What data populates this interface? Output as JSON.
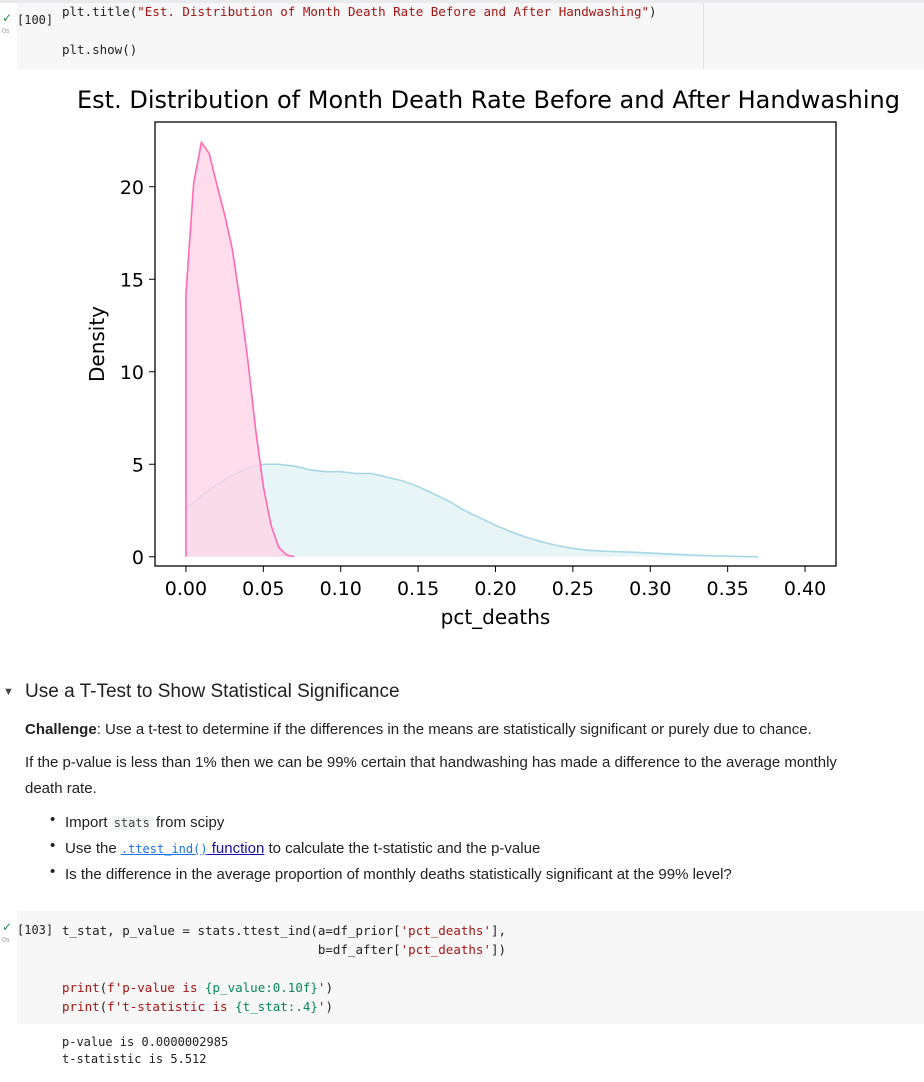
{
  "cell_top": {
    "exec_count": "[100]",
    "run_time": "0s",
    "code_lines": [
      {
        "prefix": "plt.title(",
        "string": "\"Est. Distribution of Month Death Rate Before and After Handwashing\"",
        "suffix": ")"
      },
      {
        "prefix": "plt.show()",
        "string": "",
        "suffix": ""
      }
    ]
  },
  "chart_data": {
    "type": "area",
    "title": "Est. Distribution of Month Death Rate Before and After Handwashing",
    "xlabel": "pct_deaths",
    "ylabel": "Density",
    "xlim": [
      -0.02,
      0.42
    ],
    "ylim": [
      -0.5,
      23.5
    ],
    "xticks": [
      "0.00",
      "0.05",
      "0.10",
      "0.15",
      "0.20",
      "0.25",
      "0.30",
      "0.35",
      "0.40"
    ],
    "xtick_values": [
      0.0,
      0.05,
      0.1,
      0.15,
      0.2,
      0.25,
      0.3,
      0.35,
      0.4
    ],
    "yticks": [
      "0",
      "5",
      "10",
      "15",
      "20"
    ],
    "ytick_values": [
      0,
      5,
      10,
      15,
      20
    ],
    "grid": false,
    "series": [
      {
        "color": "#a6d7e6",
        "fill": "#e6f4f6",
        "x": [
          0.0,
          0.01,
          0.02,
          0.03,
          0.04,
          0.05,
          0.06,
          0.07,
          0.08,
          0.09,
          0.1,
          0.11,
          0.12,
          0.13,
          0.14,
          0.15,
          0.16,
          0.17,
          0.18,
          0.19,
          0.2,
          0.21,
          0.22,
          0.23,
          0.24,
          0.25,
          0.26,
          0.27,
          0.28,
          0.29,
          0.3,
          0.31,
          0.32,
          0.33,
          0.34,
          0.35,
          0.36,
          0.37
        ],
        "y": [
          2.6,
          3.3,
          3.9,
          4.4,
          4.8,
          5.0,
          5.0,
          4.9,
          4.7,
          4.6,
          4.6,
          4.5,
          4.5,
          4.3,
          4.1,
          3.8,
          3.4,
          3.0,
          2.5,
          2.1,
          1.7,
          1.35,
          1.05,
          0.8,
          0.6,
          0.45,
          0.35,
          0.3,
          0.27,
          0.24,
          0.2,
          0.16,
          0.12,
          0.08,
          0.05,
          0.03,
          0.01,
          0.0
        ]
      },
      {
        "color": "#ff69b4",
        "fill": "#ffd1e6",
        "x": [
          0.0,
          0.0,
          0.005,
          0.01,
          0.015,
          0.02,
          0.025,
          0.03,
          0.035,
          0.04,
          0.045,
          0.05,
          0.055,
          0.06,
          0.065,
          0.07
        ],
        "y": [
          0.0,
          14.2,
          20.2,
          22.4,
          21.8,
          20.1,
          18.5,
          16.6,
          13.8,
          10.6,
          6.9,
          3.8,
          1.7,
          0.5,
          0.1,
          0.0
        ]
      }
    ]
  },
  "markdown": {
    "heading": "Use a T-Test to Show Statistical Significance",
    "challenge_label": "Challenge",
    "challenge_text": ": Use a t-test to determine if the differences in the means are statistically significant or purely due to chance.",
    "para_line1": "If the p-value is less than 1% then we can be 99% certain that handwashing has made a difference to the average monthly",
    "para_line2": "death rate.",
    "bullets": {
      "b1_pre": "Import ",
      "b1_code": "stats",
      "b1_post": " from scipy",
      "b2_pre": "Use the ",
      "b2_link_code": ".ttest_ind()",
      "b2_link_text": " function",
      "b2_post": " to calculate the t-statistic and the p-value",
      "b3": "Is the difference in the average proportion of monthly deaths statistically significant at the 99% level?"
    }
  },
  "cell_bottom": {
    "exec_count": "[103]",
    "run_time": "0s",
    "line1_prefix": "t_stat, p_value = stats.ttest_ind(a=df_prior[",
    "line1_str": "'pct_deaths'",
    "line1_suffix": "],",
    "line2_prefix": "                                  b=df_after[",
    "line2_str": "'pct_deaths'",
    "line2_suffix": "])",
    "line3_kw": "print",
    "line3_str_a": "f'p-value is ",
    "line3_fmt": "{p_value:0.10f}",
    "line3_str_b": "'",
    "line3_end": ")",
    "line4_kw": "print",
    "line4_str_a": "f't-statistic is ",
    "line4_fmt": "{t_stat:.4}",
    "line4_str_b": "'",
    "line4_end": ")",
    "output": [
      "p-value is 0.0000002985",
      "t-statistic is 5.512"
    ]
  },
  "colors": {
    "success": "#1e8e3e",
    "cell_bg": "#f7f7f7",
    "string": "#a31515",
    "link": "#1a0dab"
  }
}
